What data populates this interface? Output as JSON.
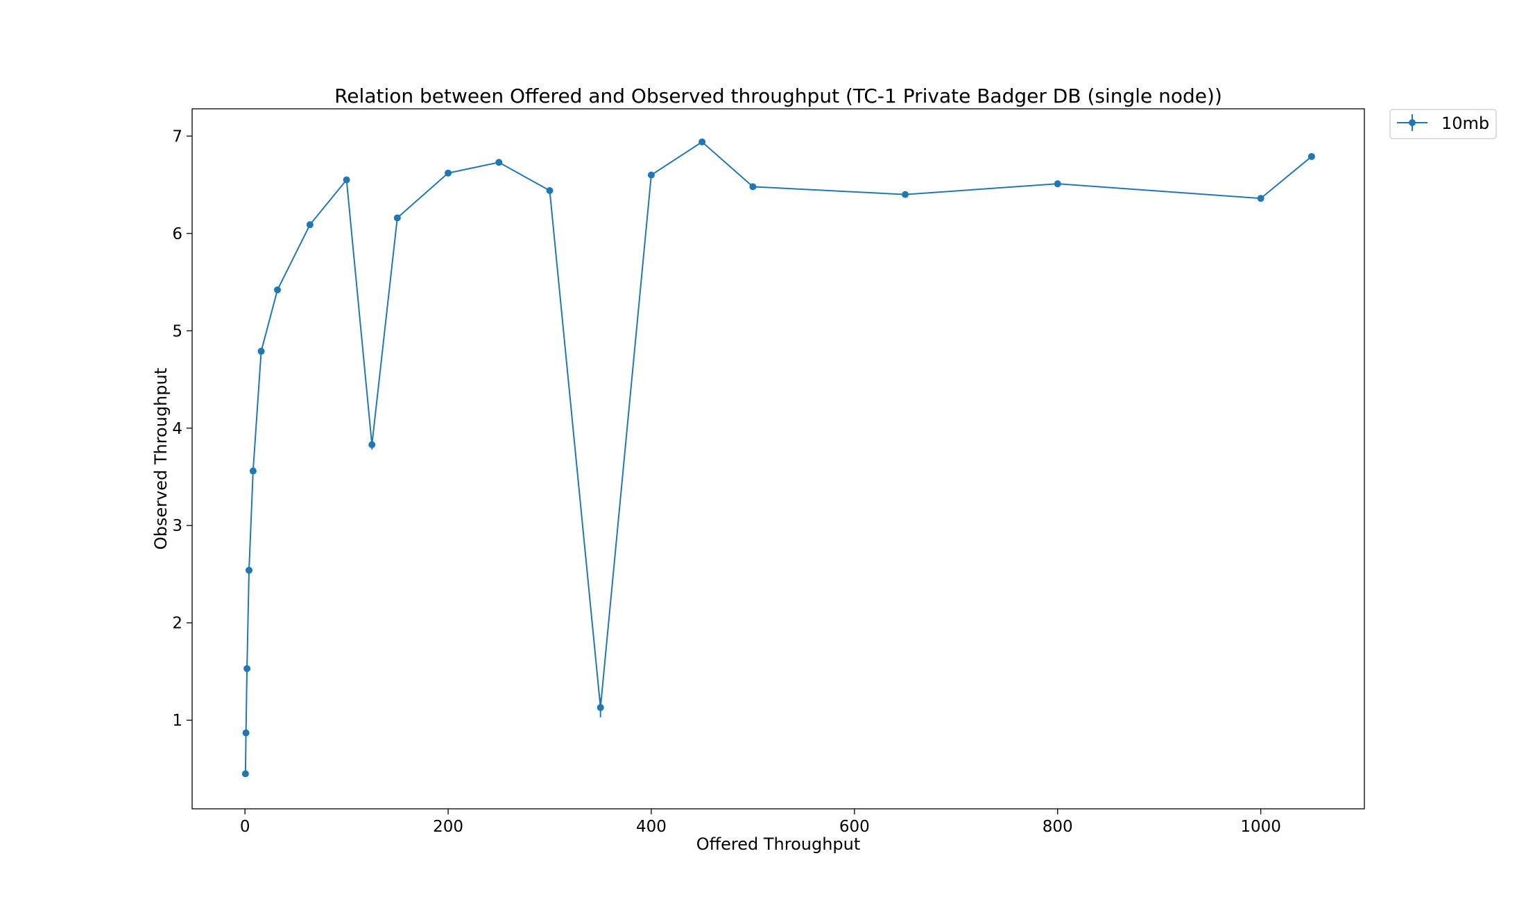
{
  "chart_data": {
    "type": "line",
    "title": "Relation between Offered and Observed throughput (TC-1  Private Badger DB (single node))",
    "xlabel": "Offered Throughput",
    "ylabel": "Observed Throughput",
    "xlim": [
      -52,
      1102
    ],
    "ylim": [
      0.09,
      7.28
    ],
    "xticks": [
      0,
      200,
      400,
      600,
      800,
      1000
    ],
    "yticks": [
      1,
      2,
      3,
      4,
      5,
      6,
      7
    ],
    "grid": false,
    "legend_position": "outside-top-right",
    "series": [
      {
        "name": "10mb",
        "color": "#1f77b4",
        "marker": "circle",
        "x": [
          0.5,
          1,
          2,
          4,
          8,
          16,
          32,
          64,
          100,
          125,
          150,
          200,
          250,
          300,
          350,
          400,
          450,
          500,
          650,
          800,
          1000,
          1050
        ],
        "y": [
          0.45,
          0.87,
          1.53,
          2.54,
          3.56,
          4.79,
          5.42,
          6.09,
          6.55,
          3.83,
          6.16,
          6.62,
          6.73,
          6.44,
          1.13,
          6.6,
          6.94,
          6.48,
          6.4,
          6.51,
          6.36,
          6.79
        ],
        "yerr": [
          0.03,
          0.0,
          0.0,
          0.0,
          0.0,
          0.0,
          0.0,
          0.0,
          0.0,
          0.05,
          0.0,
          0.0,
          0.0,
          0.0,
          0.1,
          0.0,
          0.0,
          0.0,
          0.0,
          0.0,
          0.0,
          0.0
        ]
      }
    ]
  }
}
